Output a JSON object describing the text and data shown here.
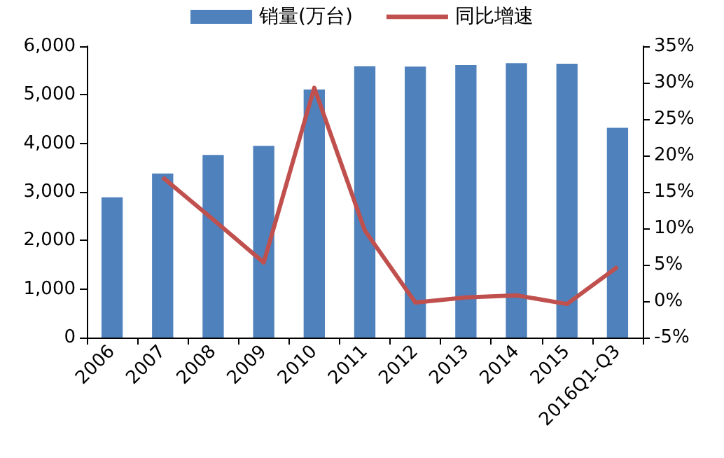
{
  "chart_data": {
    "type": "bar",
    "categories": [
      "2006",
      "2007",
      "2008",
      "2009",
      "2010",
      "2011",
      "2012",
      "2013",
      "2014",
      "2015",
      "2016Q1-Q3"
    ],
    "series": [
      {
        "name": "销量(万台)",
        "color": "#4f81bd",
        "values": [
          2890,
          3380,
          3760,
          3950,
          5110,
          5590,
          5580,
          5610,
          5650,
          5640,
          4320
        ]
      },
      {
        "name": "同比增速",
        "type": "line",
        "axis": "y2",
        "color": "#c0504d",
        "values": [
          null,
          17.0,
          11.2,
          5.3,
          29.3,
          9.7,
          -0.2,
          0.5,
          0.8,
          -0.4,
          4.7
        ]
      }
    ],
    "ylim": [
      0,
      6000
    ],
    "yticks": [
      0,
      {
        "value": 1000,
        "label": "1,000"
      },
      {
        "value": 2000,
        "label": "2,000"
      },
      {
        "value": 3000,
        "label": "3,000"
      },
      {
        "value": 4000,
        "label": "4,000"
      },
      {
        "value": 5000,
        "label": "5,000"
      },
      {
        "value": 6000,
        "label": "6,000"
      }
    ],
    "y2lim": [
      -5,
      35
    ],
    "y2ticks": [
      {
        "value": -5,
        "label": "-5%"
      },
      {
        "value": 0,
        "label": "0%"
      },
      {
        "value": 5,
        "label": "5%"
      },
      {
        "value": 10,
        "label": "10%"
      },
      {
        "value": 15,
        "label": "15%"
      },
      {
        "value": 20,
        "label": "20%"
      },
      {
        "value": 25,
        "label": "25%"
      },
      {
        "value": 30,
        "label": "30%"
      },
      {
        "value": 35,
        "label": "35%"
      }
    ],
    "legend": "top",
    "grid": false,
    "marker": "none"
  }
}
